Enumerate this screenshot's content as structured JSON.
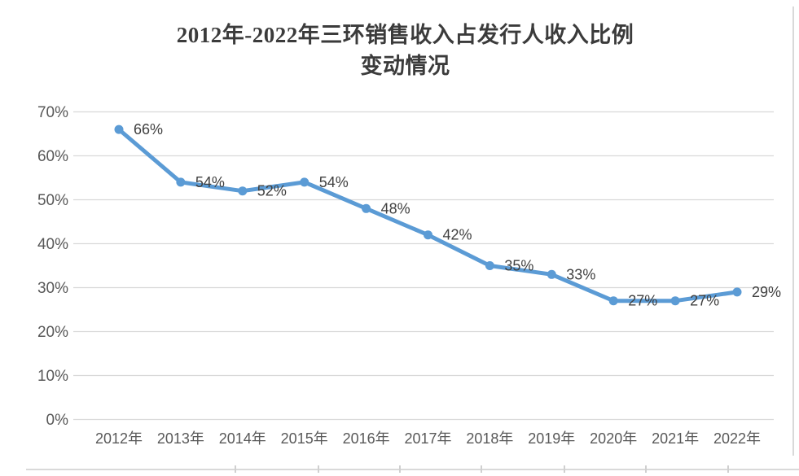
{
  "header": {
    "title_line1": "2012年-2022年三环销售收入占发行人收入比例",
    "title_line2": "变动情况"
  },
  "chart_data": {
    "type": "line",
    "title": "2012年-2022年三环销售收入占发行人收入比例变动情况",
    "categories": [
      "2012年",
      "2013年",
      "2014年",
      "2015年",
      "2016年",
      "2017年",
      "2018年",
      "2019年",
      "2020年",
      "2021年",
      "2022年"
    ],
    "values": [
      66,
      54,
      52,
      54,
      48,
      42,
      35,
      33,
      27,
      27,
      29
    ],
    "data_labels": [
      "66%",
      "54%",
      "52%",
      "54%",
      "48%",
      "42%",
      "35%",
      "33%",
      "27%",
      "27%",
      "29%"
    ],
    "ytick_values": [
      0,
      10,
      20,
      30,
      40,
      50,
      60,
      70
    ],
    "ytick_labels": [
      "0%",
      "10%",
      "20%",
      "30%",
      "40%",
      "50%",
      "60%",
      "70%"
    ],
    "ylim": [
      0,
      70
    ],
    "xlabel": "",
    "ylabel": "",
    "grid": true,
    "legend_position": "none",
    "colors": {
      "series": "#5B9BD5",
      "gridline": "#d9d9d9",
      "axis_label": "#595959",
      "data_label": "#404040",
      "title": "#3b3b3b"
    }
  }
}
